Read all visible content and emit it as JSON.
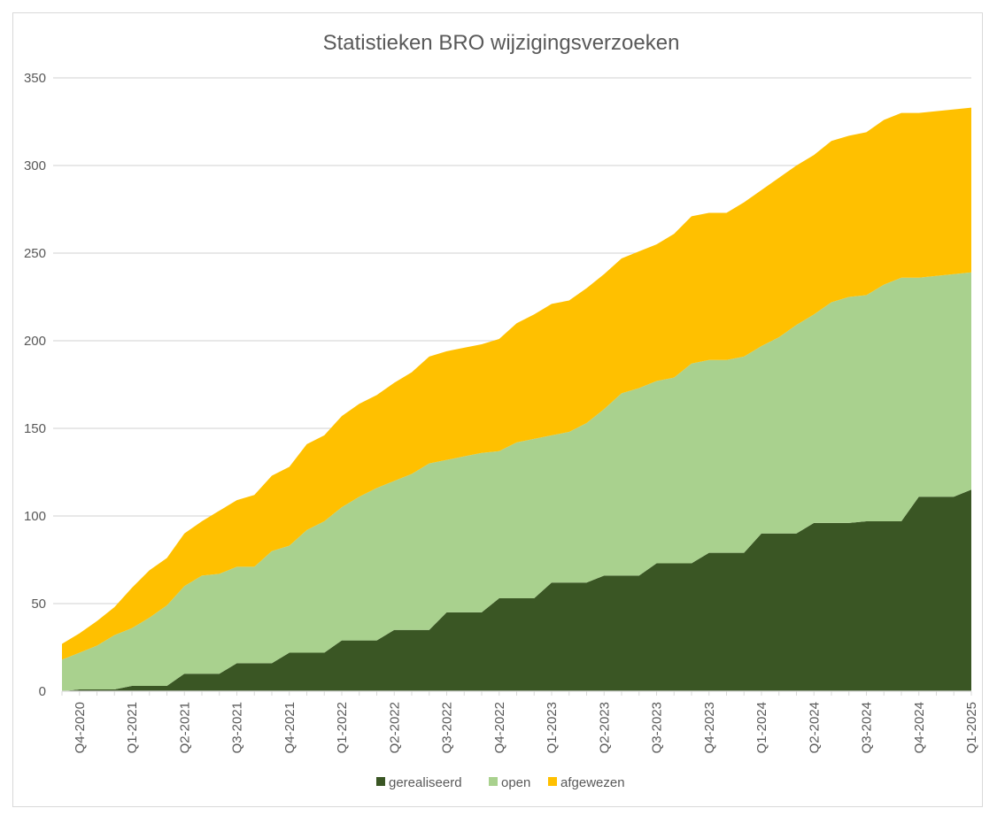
{
  "chart_data": {
    "type": "area",
    "stacked": true,
    "title": "Statistieken BRO wijzigingsverzoeken",
    "xlabel": "",
    "ylabel": "",
    "ylim": [
      0,
      350
    ],
    "yticks": [
      0,
      50,
      100,
      150,
      200,
      250,
      300,
      350
    ],
    "grid": true,
    "legend_position": "bottom",
    "categories": [
      "",
      "Q4-2020",
      "",
      "",
      "Q1-2021",
      "",
      "",
      "Q2-2021",
      "",
      "",
      "Q3-2021",
      "",
      "",
      "Q4-2021",
      "",
      "",
      "Q1-2022",
      "",
      "",
      "Q2-2022",
      "",
      "",
      "Q3-2022",
      "",
      "",
      "Q4-2022",
      "",
      "",
      "Q1-2023",
      "",
      "",
      "Q2-2023",
      "",
      "",
      "Q3-2023",
      "",
      "",
      "Q4-2023",
      "",
      "",
      "Q1-2024",
      "",
      "",
      "Q2-2024",
      "",
      "",
      "Q3-2024",
      "",
      "",
      "Q4-2024",
      "",
      "",
      "Q1-2025"
    ],
    "series": [
      {
        "name": "gerealiseerd",
        "color": "#3A5624",
        "values": [
          0,
          1,
          1,
          1,
          3,
          3,
          3,
          10,
          10,
          10,
          16,
          16,
          16,
          22,
          22,
          22,
          29,
          29,
          29,
          35,
          35,
          35,
          45,
          45,
          45,
          53,
          53,
          53,
          62,
          62,
          62,
          66,
          66,
          66,
          73,
          73,
          73,
          79,
          79,
          79,
          90,
          90,
          90,
          96,
          96,
          96,
          97,
          97,
          97,
          111,
          111,
          111,
          115
        ]
      },
      {
        "name": "open",
        "color": "#A9D18E",
        "values": [
          18,
          21,
          25,
          31,
          33,
          39,
          46,
          50,
          56,
          57,
          55,
          55,
          64,
          61,
          70,
          75,
          76,
          82,
          87,
          85,
          89,
          95,
          87,
          89,
          91,
          84,
          89,
          91,
          84,
          86,
          91,
          95,
          104,
          107,
          104,
          106,
          114,
          110,
          110,
          112,
          107,
          112,
          119,
          119,
          126,
          129,
          129,
          135,
          139,
          125,
          126,
          127,
          124
        ]
      },
      {
        "name": "afgewezen",
        "color": "#FFC000",
        "values": [
          9,
          11,
          14,
          16,
          23,
          27,
          27,
          30,
          31,
          36,
          38,
          41,
          43,
          45,
          49,
          49,
          52,
          53,
          53,
          56,
          58,
          61,
          62,
          62,
          62,
          64,
          68,
          71,
          75,
          75,
          77,
          77,
          77,
          78,
          78,
          82,
          84,
          84,
          84,
          88,
          89,
          91,
          91,
          91,
          92,
          92,
          93,
          94,
          94,
          94,
          94,
          94,
          94
        ]
      }
    ]
  }
}
